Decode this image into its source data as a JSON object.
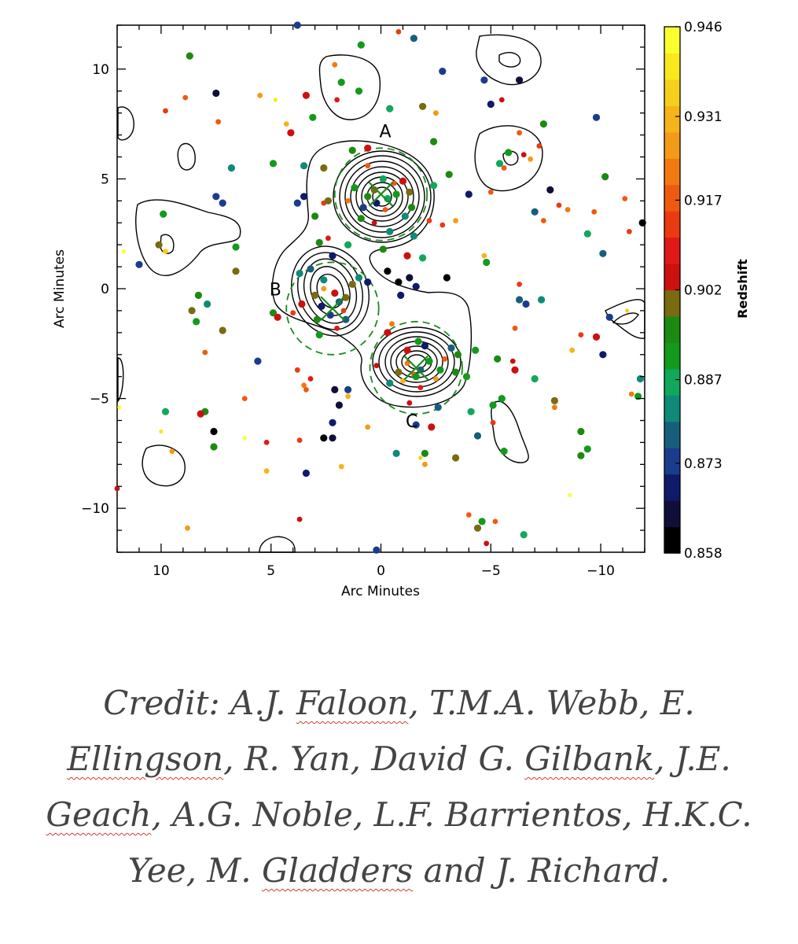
{
  "chart_data": {
    "type": "scatter",
    "xlabel": "Arc Minutes",
    "ylabel": "Arc Minutes",
    "xlim": [
      12,
      -12
    ],
    "ylim": [
      -12,
      12
    ],
    "xticks": [
      10,
      5,
      0,
      -5,
      -10
    ],
    "yticks": [
      10,
      5,
      0,
      -5,
      -10
    ],
    "grid": false,
    "colorbar": {
      "label": "Redshift",
      "range": [
        0.858,
        0.946
      ],
      "ticks": [
        0.946,
        0.931,
        0.917,
        0.902,
        0.887,
        0.873,
        0.858
      ],
      "band_colors": [
        "#000000",
        "#0f0f3a",
        "#101a6a",
        "#1b3c8c",
        "#175e7c",
        "#0f8a78",
        "#10a85a",
        "#129a1c",
        "#1c8a10",
        "#7a6a10",
        "#cc1010",
        "#e01818",
        "#ea3a10",
        "#ee5a10",
        "#f07a10",
        "#f39a18",
        "#f5b41a",
        "#f6cf1c",
        "#f8e81c",
        "#faff30"
      ]
    },
    "annotations": [
      {
        "text": "A",
        "x": -0.2,
        "y": 6.9
      },
      {
        "text": "B",
        "x": 4.8,
        "y": -0.3
      },
      {
        "text": "C",
        "x": -1.4,
        "y": -6.3
      }
    ],
    "cluster_centers": [
      {
        "name": "A",
        "x": 0.0,
        "y": 4.3
      },
      {
        "name": "B",
        "x": 2.2,
        "y": -0.9
      },
      {
        "name": "C",
        "x": -1.6,
        "y": -3.6
      }
    ],
    "points": [
      {
        "x": -2.8,
        "y": 9.9,
        "z": 0.874
      },
      {
        "x": 0.9,
        "y": 11.1,
        "z": 0.893
      },
      {
        "x": -4.7,
        "y": 9.5,
        "z": 0.873
      },
      {
        "x": -6.3,
        "y": 9.5,
        "z": 0.866
      },
      {
        "x": -0.8,
        "y": 11.7,
        "z": 0.912
      },
      {
        "x": -1.5,
        "y": 11.4,
        "z": 0.879
      },
      {
        "x": 3.8,
        "y": 12.0,
        "z": 0.873
      },
      {
        "x": 2.1,
        "y": 10.2,
        "z": 0.921
      },
      {
        "x": 1.8,
        "y": 9.4,
        "z": 0.893
      },
      {
        "x": 1.0,
        "y": 9.0,
        "z": 0.889
      },
      {
        "x": 2.0,
        "y": 8.6,
        "z": 0.907
      },
      {
        "x": -0.4,
        "y": 8.2,
        "z": 0.887
      },
      {
        "x": -1.9,
        "y": 8.3,
        "z": 0.901
      },
      {
        "x": -2.5,
        "y": 8.0,
        "z": 0.926
      },
      {
        "x": 8.7,
        "y": 10.6,
        "z": 0.897
      },
      {
        "x": 7.5,
        "y": 8.9,
        "z": 0.866
      },
      {
        "x": 9.8,
        "y": 8.1,
        "z": 0.913
      },
      {
        "x": 8.9,
        "y": 8.7,
        "z": 0.918
      },
      {
        "x": 7.4,
        "y": 7.6,
        "z": 0.919
      },
      {
        "x": 5.5,
        "y": 8.8,
        "z": 0.925
      },
      {
        "x": 4.8,
        "y": 8.6,
        "z": 0.941
      },
      {
        "x": 3.4,
        "y": 8.8,
        "z": 0.904
      },
      {
        "x": 3.1,
        "y": 7.8,
        "z": 0.893
      },
      {
        "x": 4.1,
        "y": 7.1,
        "z": 0.902
      },
      {
        "x": 4.3,
        "y": 7.5,
        "z": 0.93
      },
      {
        "x": 0.6,
        "y": 6.4,
        "z": 0.903
      },
      {
        "x": 1.3,
        "y": 6.3,
        "z": 0.896
      },
      {
        "x": -2.4,
        "y": 6.7,
        "z": 0.894
      },
      {
        "x": -5.0,
        "y": 8.4,
        "z": 0.868
      },
      {
        "x": -5.5,
        "y": 8.6,
        "z": 0.905
      },
      {
        "x": -9.8,
        "y": 7.8,
        "z": 0.872
      },
      {
        "x": -6.3,
        "y": 7.1,
        "z": 0.918
      },
      {
        "x": -7.4,
        "y": 7.5,
        "z": 0.895
      },
      {
        "x": -5.8,
        "y": 6.2,
        "z": 0.893
      },
      {
        "x": -6.5,
        "y": 6.1,
        "z": 0.905
      },
      {
        "x": -6.8,
        "y": 5.9,
        "z": 0.924
      },
      {
        "x": -7.2,
        "y": 6.5,
        "z": 0.911
      },
      {
        "x": -5.4,
        "y": 5.7,
        "z": 0.885
      },
      {
        "x": -5.6,
        "y": 5.5,
        "z": 0.919
      },
      {
        "x": -4.0,
        "y": 4.3,
        "z": 0.871
      },
      {
        "x": -7.7,
        "y": 4.5,
        "z": 0.866
      },
      {
        "x": -10.2,
        "y": 5.1,
        "z": 0.896
      },
      {
        "x": -11.1,
        "y": 4.1,
        "z": 0.918
      },
      {
        "x": -9.7,
        "y": 3.5,
        "z": 0.919
      },
      {
        "x": -8.1,
        "y": 3.8,
        "z": 0.913
      },
      {
        "x": -8.5,
        "y": 3.6,
        "z": 0.92
      },
      {
        "x": -7.0,
        "y": 3.5,
        "z": 0.879
      },
      {
        "x": -7.4,
        "y": 3.1,
        "z": 0.916
      },
      {
        "x": -9.4,
        "y": 2.5,
        "z": 0.887
      },
      {
        "x": -10.1,
        "y": 1.6,
        "z": 0.877
      },
      {
        "x": -11.3,
        "y": 2.6,
        "z": 0.911
      },
      {
        "x": -11.9,
        "y": 3.0,
        "z": 0.86
      },
      {
        "x": 2.6,
        "y": 5.5,
        "z": 0.899
      },
      {
        "x": 3.5,
        "y": 5.6,
        "z": 0.882
      },
      {
        "x": 4.9,
        "y": 5.7,
        "z": 0.891
      },
      {
        "x": 6.8,
        "y": 5.5,
        "z": 0.884
      },
      {
        "x": -3.1,
        "y": 5.2,
        "z": 0.896
      },
      {
        "x": -2.4,
        "y": 4.7,
        "z": 0.886
      },
      {
        "x": -5.0,
        "y": 4.4,
        "z": 0.916
      },
      {
        "x": 7.5,
        "y": 4.2,
        "z": 0.872
      },
      {
        "x": 7.2,
        "y": 3.9,
        "z": 0.873
      },
      {
        "x": 9.9,
        "y": 3.4,
        "z": 0.891
      },
      {
        "x": 11.0,
        "y": 1.1,
        "z": 0.874
      },
      {
        "x": 10.1,
        "y": 2.0,
        "z": 0.9
      },
      {
        "x": 9.8,
        "y": 1.7,
        "z": 0.933
      },
      {
        "x": 11.7,
        "y": 1.7,
        "z": 0.942
      },
      {
        "x": 6.6,
        "y": 1.9,
        "z": 0.889
      },
      {
        "x": 6.6,
        "y": 0.8,
        "z": 0.898
      },
      {
        "x": 3.8,
        "y": 3.9,
        "z": 0.873
      },
      {
        "x": 3.5,
        "y": 4.2,
        "z": 0.868
      },
      {
        "x": 3.0,
        "y": 3.3,
        "z": 0.894
      },
      {
        "x": 2.6,
        "y": 3.9,
        "z": 0.914
      },
      {
        "x": 2.4,
        "y": 2.3,
        "z": 0.91
      },
      {
        "x": 2.8,
        "y": 2.1,
        "z": 0.897
      },
      {
        "x": 2.2,
        "y": 1.5,
        "z": 0.867
      },
      {
        "x": 1.5,
        "y": 2.0,
        "z": 0.888
      },
      {
        "x": -2.2,
        "y": 3.1,
        "z": 0.914
      },
      {
        "x": -3.4,
        "y": 3.1,
        "z": 0.926
      },
      {
        "x": -2.8,
        "y": 2.9,
        "z": 0.911
      },
      {
        "x": -1.5,
        "y": 2.4,
        "z": 0.881
      },
      {
        "x": -1.9,
        "y": 1.4,
        "z": 0.886
      },
      {
        "x": -1.2,
        "y": 1.5,
        "z": 0.902
      },
      {
        "x": -0.1,
        "y": 1.8,
        "z": 0.895
      },
      {
        "x": -4.7,
        "y": 1.5,
        "z": 0.932
      },
      {
        "x": -4.8,
        "y": 1.2,
        "z": 0.893
      },
      {
        "x": -6.3,
        "y": 0.2,
        "z": 0.913
      },
      {
        "x": -7.3,
        "y": -0.5,
        "z": 0.88
      },
      {
        "x": -0.3,
        "y": 0.8,
        "z": 0.858
      },
      {
        "x": 0.6,
        "y": 0.3,
        "z": 0.87
      },
      {
        "x": 1.0,
        "y": 0.5,
        "z": 0.881
      },
      {
        "x": -0.8,
        "y": 0.3,
        "z": 0.862
      },
      {
        "x": -1.3,
        "y": 0.5,
        "z": 0.864
      },
      {
        "x": -1.6,
        "y": 0.1,
        "z": 0.87
      },
      {
        "x": -3.0,
        "y": 0.5,
        "z": 0.86
      },
      {
        "x": -0.9,
        "y": -0.3,
        "z": 0.867
      },
      {
        "x": 3.2,
        "y": 0.9,
        "z": 0.877
      },
      {
        "x": 3.7,
        "y": 0.7,
        "z": 0.88
      },
      {
        "x": 2.6,
        "y": 0.4,
        "z": 0.884
      },
      {
        "x": 3.0,
        "y": -0.3,
        "z": 0.9
      },
      {
        "x": 3.6,
        "y": -0.7,
        "z": 0.903
      },
      {
        "x": 4.0,
        "y": -1.1,
        "z": 0.912
      },
      {
        "x": 4.9,
        "y": -1.1,
        "z": 0.896
      },
      {
        "x": 4.7,
        "y": -1.3,
        "z": 0.902
      },
      {
        "x": 8.3,
        "y": -0.3,
        "z": 0.896
      },
      {
        "x": 7.9,
        "y": -0.7,
        "z": 0.883
      },
      {
        "x": 8.6,
        "y": -1.0,
        "z": 0.898
      },
      {
        "x": 8.4,
        "y": -1.5,
        "z": 0.893
      },
      {
        "x": 7.2,
        "y": -1.9,
        "z": 0.898
      },
      {
        "x": 8.0,
        "y": -2.9,
        "z": 0.917
      },
      {
        "x": 5.6,
        "y": -3.3,
        "z": 0.872
      },
      {
        "x": 3.8,
        "y": -3.7,
        "z": 0.913
      },
      {
        "x": 3.5,
        "y": -4.4,
        "z": 0.923
      },
      {
        "x": 3.4,
        "y": -4.6,
        "z": 0.917
      },
      {
        "x": 3.2,
        "y": -4.1,
        "z": 0.91
      },
      {
        "x": 2.1,
        "y": -4.6,
        "z": 0.866
      },
      {
        "x": 1.5,
        "y": -4.6,
        "z": 0.873
      },
      {
        "x": 1.9,
        "y": -5.3,
        "z": 0.866
      },
      {
        "x": 1.5,
        "y": -4.9,
        "z": 0.931
      },
      {
        "x": 2.6,
        "y": -6.8,
        "z": 0.858
      },
      {
        "x": 2.2,
        "y": -6.8,
        "z": 0.866
      },
      {
        "x": 0.6,
        "y": -6.3,
        "z": 0.925
      },
      {
        "x": 2.2,
        "y": -6.1,
        "z": 0.871
      },
      {
        "x": -0.7,
        "y": -7.5,
        "z": 0.88
      },
      {
        "x": -1.8,
        "y": -7.7,
        "z": 0.937
      },
      {
        "x": -2.0,
        "y": -7.5,
        "z": 0.895
      },
      {
        "x": -2.0,
        "y": -8.0,
        "z": 0.925
      },
      {
        "x": 1.8,
        "y": -8.1,
        "z": 0.932
      },
      {
        "x": 3.4,
        "y": -8.4,
        "z": 0.868
      },
      {
        "x": 3.7,
        "y": -10.5,
        "z": 0.906
      },
      {
        "x": -4.0,
        "y": -10.3,
        "z": 0.919
      },
      {
        "x": -4.6,
        "y": -10.6,
        "z": 0.893
      },
      {
        "x": -5.2,
        "y": -10.6,
        "z": 0.918
      },
      {
        "x": -4.4,
        "y": -10.9,
        "z": 0.899
      },
      {
        "x": -6.5,
        "y": -11.2,
        "z": 0.885
      },
      {
        "x": -4.8,
        "y": -11.6,
        "z": 0.906
      },
      {
        "x": 0.2,
        "y": -11.9,
        "z": 0.874
      },
      {
        "x": -3.4,
        "y": -7.7,
        "z": 0.899
      },
      {
        "x": -4.4,
        "y": -6.7,
        "z": 0.876
      },
      {
        "x": -5.1,
        "y": -6.1,
        "z": 0.914
      },
      {
        "x": -5.6,
        "y": -7.4,
        "z": 0.892
      },
      {
        "x": -4.1,
        "y": -5.6,
        "z": 0.887
      },
      {
        "x": -5.5,
        "y": -5.0,
        "z": 0.89
      },
      {
        "x": -5.1,
        "y": -5.3,
        "z": 0.893
      },
      {
        "x": -3.9,
        "y": -4.0,
        "z": 0.89
      },
      {
        "x": -5.3,
        "y": -3.2,
        "z": 0.896
      },
      {
        "x": -6.1,
        "y": -3.7,
        "z": 0.902
      },
      {
        "x": -7.0,
        "y": -4.1,
        "z": 0.885
      },
      {
        "x": -7.9,
        "y": -5.1,
        "z": 0.898
      },
      {
        "x": -6.1,
        "y": -1.8,
        "z": 0.919
      },
      {
        "x": -6.0,
        "y": -3.3,
        "z": 0.905
      },
      {
        "x": -8.7,
        "y": -2.8,
        "z": 0.93
      },
      {
        "x": -9.1,
        "y": -2.1,
        "z": 0.915
      },
      {
        "x": -9.8,
        "y": -2.2,
        "z": 0.902
      },
      {
        "x": -10.1,
        "y": -3.0,
        "z": 0.868
      },
      {
        "x": -10.4,
        "y": -1.3,
        "z": 0.873
      },
      {
        "x": -11.2,
        "y": -1.0,
        "z": 0.936
      },
      {
        "x": -11.8,
        "y": -4.1,
        "z": 0.883
      },
      {
        "x": -11.4,
        "y": -4.8,
        "z": 0.923
      },
      {
        "x": -11.7,
        "y": -4.9,
        "z": 0.893
      },
      {
        "x": -9.1,
        "y": -6.5,
        "z": 0.895
      },
      {
        "x": -9.4,
        "y": -7.3,
        "z": 0.893
      },
      {
        "x": -9.1,
        "y": -7.6,
        "z": 0.896
      },
      {
        "x": -8.6,
        "y": -9.4,
        "z": 0.944
      },
      {
        "x": -7.9,
        "y": -5.4,
        "z": 0.921
      },
      {
        "x": -6.3,
        "y": -0.5,
        "z": 0.876
      },
      {
        "x": -6.6,
        "y": -0.7,
        "z": 0.873
      },
      {
        "x": -3.5,
        "y": -3.0,
        "z": 0.895
      },
      {
        "x": -4.3,
        "y": -2.8,
        "z": 0.89
      },
      {
        "x": -1.7,
        "y": -2.4,
        "z": 0.891
      },
      {
        "x": 8.0,
        "y": -5.6,
        "z": 0.897
      },
      {
        "x": 9.8,
        "y": -5.6,
        "z": 0.887
      },
      {
        "x": 10.0,
        "y": -6.5,
        "z": 0.941
      },
      {
        "x": 11.9,
        "y": -5.4,
        "z": 0.943
      },
      {
        "x": 7.6,
        "y": -6.5,
        "z": 0.858
      },
      {
        "x": 7.6,
        "y": -7.2,
        "z": 0.896
      },
      {
        "x": 8.2,
        "y": -5.7,
        "z": 0.902
      },
      {
        "x": 6.2,
        "y": -5.0,
        "z": 0.917
      },
      {
        "x": 5.2,
        "y": -7.0,
        "z": 0.907
      },
      {
        "x": 5.2,
        "y": -8.3,
        "z": 0.929
      },
      {
        "x": 6.2,
        "y": -6.8,
        "z": 0.944
      },
      {
        "x": 3.7,
        "y": -6.9,
        "z": 0.911
      },
      {
        "x": 9.5,
        "y": -7.4,
        "z": 0.925
      },
      {
        "x": 8.8,
        "y": -10.9,
        "z": 0.928
      },
      {
        "x": 12.0,
        "y": -9.1,
        "z": 0.905
      },
      {
        "x": -0.3,
        "y": -2.0,
        "z": 0.904
      },
      {
        "x": -0.5,
        "y": -1.6,
        "z": 0.921
      },
      {
        "x": -3.2,
        "y": -2.7,
        "z": 0.877
      },
      {
        "x": 0.2,
        "y": -3.5,
        "z": 0.905
      },
      {
        "x": -0.7,
        "y": 4.3,
        "z": 0.893
      },
      {
        "x": -0.3,
        "y": 4.1,
        "z": 0.887
      },
      {
        "x": 0.3,
        "y": 4.5,
        "z": 0.899
      },
      {
        "x": 0.6,
        "y": 4.2,
        "z": 0.895
      },
      {
        "x": 0.2,
        "y": 3.9,
        "z": 0.868
      },
      {
        "x": -0.2,
        "y": 3.6,
        "z": 0.917
      },
      {
        "x": 0.8,
        "y": 3.7,
        "z": 0.873
      },
      {
        "x": -1.0,
        "y": 4.9,
        "z": 0.902
      },
      {
        "x": -0.6,
        "y": 4.8,
        "z": 0.919
      },
      {
        "x": 0.3,
        "y": 3.0,
        "z": 0.905
      },
      {
        "x": -1.4,
        "y": 3.7,
        "z": 0.895
      },
      {
        "x": 1.2,
        "y": 4.6,
        "z": 0.891
      },
      {
        "x": -0.1,
        "y": 5.0,
        "z": 0.888
      },
      {
        "x": -1.1,
        "y": 3.3,
        "z": 0.884
      },
      {
        "x": 0.9,
        "y": 3.2,
        "z": 0.896
      },
      {
        "x": -0.4,
        "y": 2.6,
        "z": 0.881
      },
      {
        "x": 1.5,
        "y": 4.0,
        "z": 0.922
      },
      {
        "x": 2.4,
        "y": 4.0,
        "z": 0.901
      },
      {
        "x": -1.3,
        "y": 4.4,
        "z": 0.899
      },
      {
        "x": 0.6,
        "y": 5.6,
        "z": 0.919
      },
      {
        "x": 2.7,
        "y": -0.8,
        "z": 0.87
      },
      {
        "x": 2.3,
        "y": -1.2,
        "z": 0.873
      },
      {
        "x": 1.9,
        "y": -0.6,
        "z": 0.879
      },
      {
        "x": 2.1,
        "y": -0.2,
        "z": 0.902
      },
      {
        "x": 1.6,
        "y": -0.4,
        "z": 0.9
      },
      {
        "x": 2.9,
        "y": -1.4,
        "z": 0.896
      },
      {
        "x": 1.7,
        "y": -1.0,
        "z": 0.913
      },
      {
        "x": 2.6,
        "y": 0.0,
        "z": 0.924
      },
      {
        "x": 1.6,
        "y": -1.4,
        "z": 0.876
      },
      {
        "x": 2.8,
        "y": -2.1,
        "z": 0.893
      },
      {
        "x": 1.3,
        "y": 0.2,
        "z": 0.898
      },
      {
        "x": 2.0,
        "y": -1.8,
        "z": 0.909
      },
      {
        "x": -1.2,
        "y": -3.4,
        "z": 0.921
      },
      {
        "x": -1.8,
        "y": -3.7,
        "z": 0.877
      },
      {
        "x": -2.2,
        "y": -3.3,
        "z": 0.89
      },
      {
        "x": -1.5,
        "y": -3.9,
        "z": 0.918
      },
      {
        "x": -0.8,
        "y": -3.8,
        "z": 0.898
      },
      {
        "x": -2.7,
        "y": -3.7,
        "z": 0.893
      },
      {
        "x": -2.9,
        "y": -3.2,
        "z": 0.916
      },
      {
        "x": -1.2,
        "y": -2.8,
        "z": 0.902
      },
      {
        "x": -2.5,
        "y": -4.1,
        "z": 0.924
      },
      {
        "x": -1.8,
        "y": -4.5,
        "z": 0.91
      },
      {
        "x": -0.4,
        "y": -4.3,
        "z": 0.881
      },
      {
        "x": -3.4,
        "y": -3.8,
        "z": 0.897
      },
      {
        "x": -1.0,
        "y": -4.2,
        "z": 0.93
      },
      {
        "x": -2.0,
        "y": -2.6,
        "z": 0.871
      },
      {
        "x": -2.6,
        "y": -5.4,
        "z": 0.878
      },
      {
        "x": -1.3,
        "y": -5.2,
        "z": 0.905
      },
      {
        "x": -1.6,
        "y": -6.2,
        "z": 0.872
      },
      {
        "x": -2.3,
        "y": -6.3,
        "z": 0.903
      },
      {
        "x": -1.6,
        "y": -4.0,
        "z": 0.89
      }
    ]
  },
  "caption": {
    "line1_a": "Credit: A.J. ",
    "line1_b": "Faloon",
    "line1_c": ", T.M.A. Webb, E.",
    "line2_a": "Ellingson",
    "line2_b": ", R. Yan, David G. ",
    "line2_c": "Gilbank",
    "line2_d": ", J.E.",
    "line3_a": "Geach",
    "line3_b": ", A.G. Noble, L.F. Barrientos, H.K.C.",
    "line4_a": "Yee, M. ",
    "line4_b": "Gladders",
    "line4_c": " and J. Richard."
  },
  "colors": {
    "contour": "#000000",
    "dashed_circle": "#1d8a1d",
    "caption_text": "#444444"
  }
}
